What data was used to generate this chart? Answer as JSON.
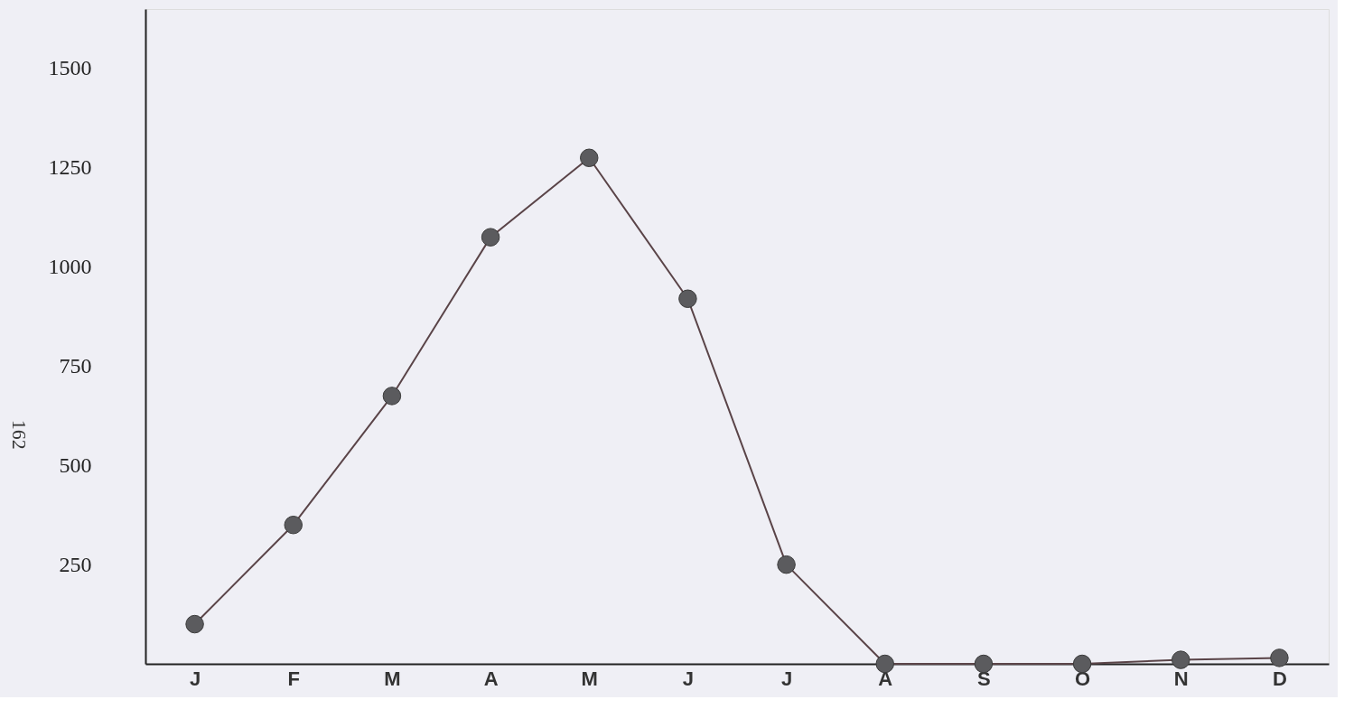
{
  "chart_data": {
    "type": "line",
    "categories": [
      "J",
      "F",
      "M",
      "A",
      "M",
      "J",
      "J",
      "A",
      "S",
      "O",
      "N",
      "D"
    ],
    "series": [
      {
        "color": "#5a4448",
        "values": [
          100,
          350,
          675,
          1075,
          1275,
          920,
          250,
          0,
          0,
          0,
          10,
          15
        ]
      }
    ],
    "ylim": [
      0,
      1650
    ],
    "yticks": [
      250,
      500,
      750,
      1000,
      1250,
      1500
    ],
    "marker": "circle",
    "line_style": "solid",
    "grid": false,
    "annotations": [
      "162"
    ]
  }
}
